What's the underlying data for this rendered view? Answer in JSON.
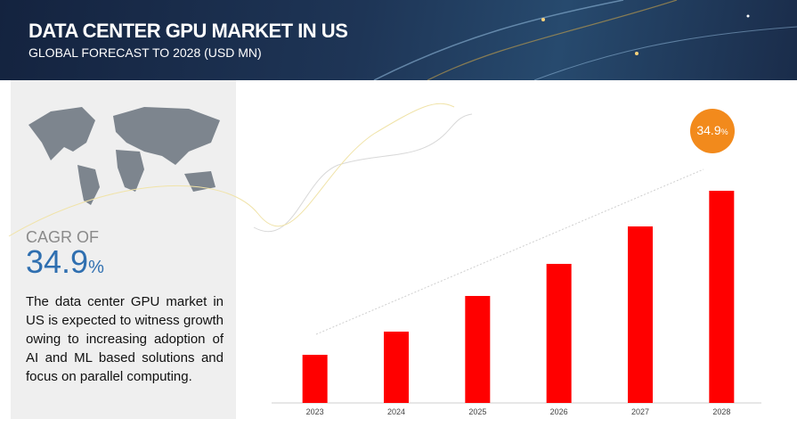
{
  "header": {
    "title": "DATA CENTER GPU MARKET IN US",
    "subtitle": "GLOBAL FORECAST TO 2028 (USD MN)"
  },
  "panel": {
    "cagr_label": "CAGR OF",
    "cagr_value": "34.9",
    "cagr_unit": "%",
    "description": "The data center GPU market in US is expected to witness growth owing to increasing adoption of AI and ML based solutions and focus on parallel computing."
  },
  "badge": {
    "value": "34.9",
    "unit": "%"
  },
  "chart_data": {
    "type": "bar",
    "categories": [
      "2023",
      "2024",
      "2025",
      "2026",
      "2027",
      "2028"
    ],
    "values": [
      54,
      80,
      120,
      156,
      198,
      238
    ],
    "color": "#ff0000"
  }
}
